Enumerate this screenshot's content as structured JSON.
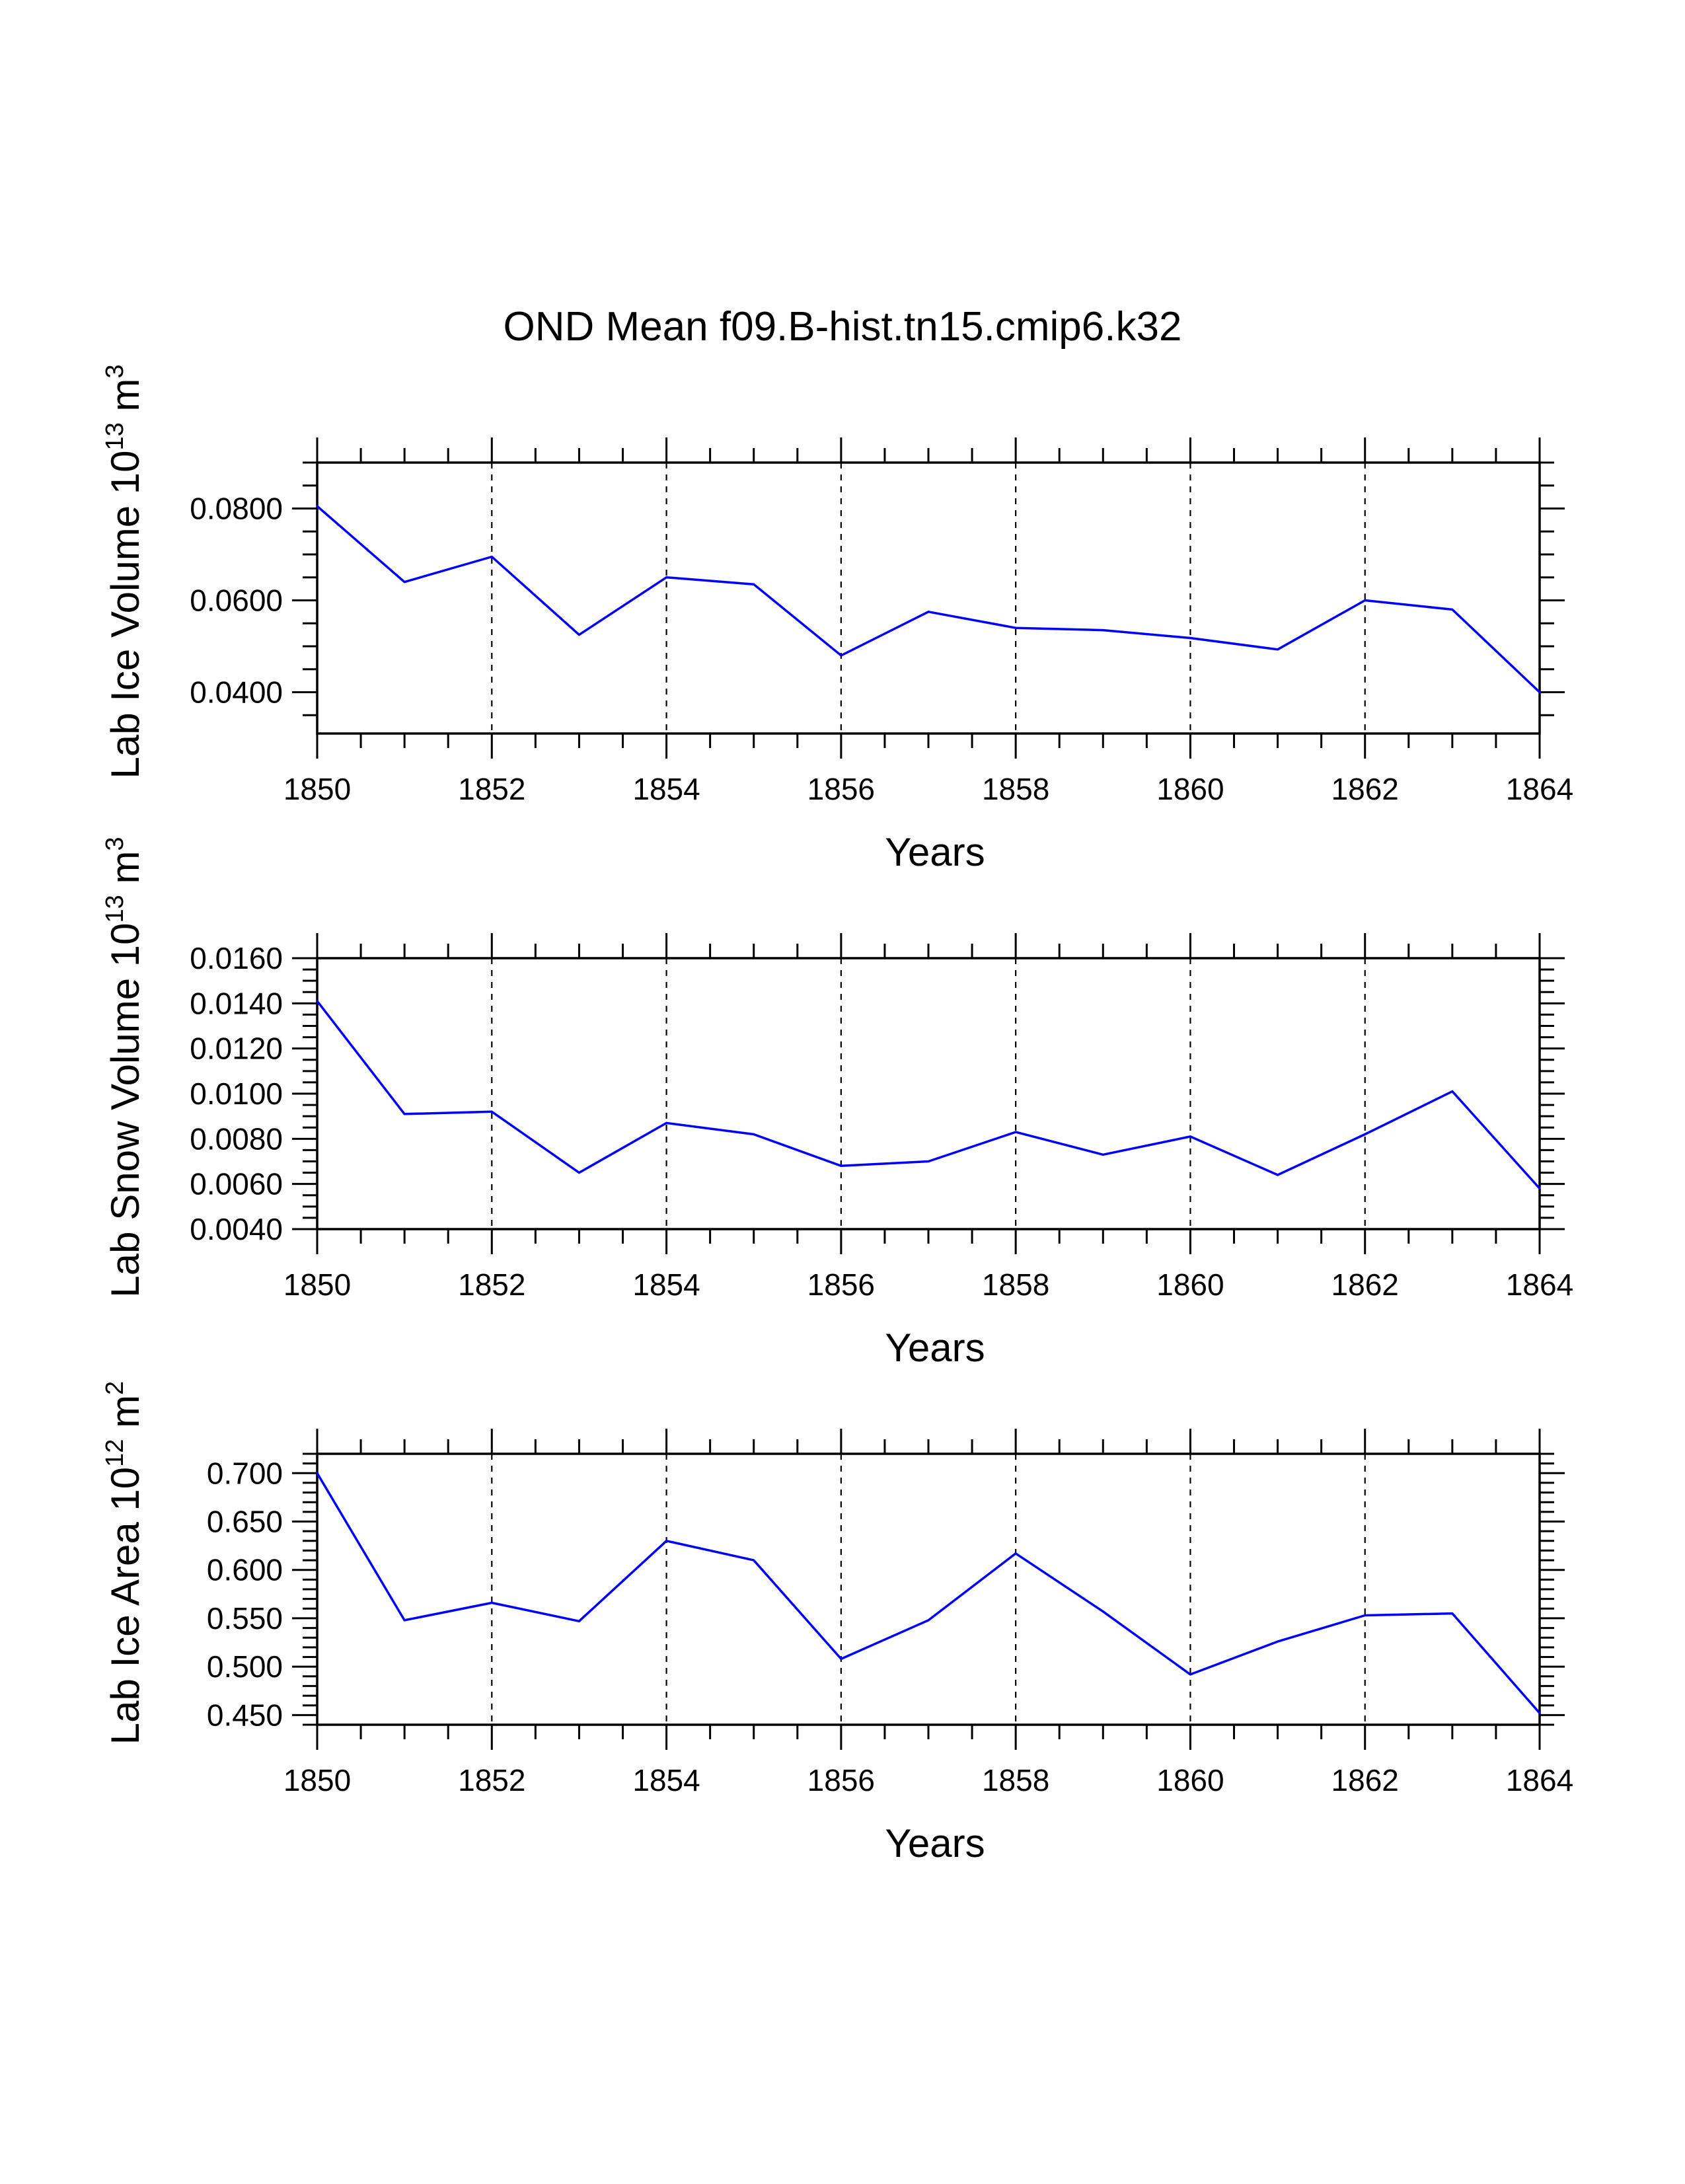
{
  "chart_data": {
    "title": "OND Mean f09.B-hist.tn15.cmip6.k32",
    "type": "line",
    "line_color": "#0000ff",
    "panels": [
      {
        "type": "line",
        "xlabel": "Years",
        "ylabel": {
          "text": "Lab Ice Volume 10",
          "exp": "13",
          "unit": " m",
          "unit_exp": "3"
        },
        "xlim": [
          1850,
          1864
        ],
        "ylim": [
          0.031,
          0.09
        ],
        "yticks": [
          0.04,
          0.06,
          0.08
        ],
        "ytick_labels": [
          "0.0400",
          "0.0600",
          "0.0800"
        ],
        "yminor_step": 0.005,
        "xticks": [
          1850,
          1852,
          1854,
          1856,
          1858,
          1860,
          1862,
          1864
        ],
        "xtick_labels": [
          "1850",
          "1852",
          "1854",
          "1856",
          "1858",
          "1860",
          "1862",
          "1864"
        ],
        "grid": "dashed vertical at major x ticks",
        "series": [
          {
            "name": "Lab Ice Volume",
            "x": [
              1850,
              1851,
              1852,
              1853,
              1854,
              1855,
              1856,
              1857,
              1858,
              1859,
              1860,
              1861,
              1862,
              1863,
              1864
            ],
            "values": [
              0.0805,
              0.064,
              0.0695,
              0.0525,
              0.065,
              0.0635,
              0.048,
              0.0575,
              0.054,
              0.0535,
              0.0518,
              0.0493,
              0.06,
              0.058,
              0.04
            ]
          }
        ]
      },
      {
        "type": "line",
        "xlabel": "Years",
        "ylabel": {
          "text": "Lab Snow Volume 10",
          "exp": "13",
          "unit": " m",
          "unit_exp": "3"
        },
        "xlim": [
          1850,
          1864
        ],
        "ylim": [
          0.004,
          0.016
        ],
        "yticks": [
          0.004,
          0.006,
          0.008,
          0.01,
          0.012,
          0.014,
          0.016
        ],
        "ytick_labels": [
          "0.0040",
          "0.0060",
          "0.0080",
          "0.0100",
          "0.0120",
          "0.0140",
          "0.0160"
        ],
        "yminor_step": 0.0005,
        "xticks": [
          1850,
          1852,
          1854,
          1856,
          1858,
          1860,
          1862,
          1864
        ],
        "xtick_labels": [
          "1850",
          "1852",
          "1854",
          "1856",
          "1858",
          "1860",
          "1862",
          "1864"
        ],
        "grid": "dashed vertical at major x ticks",
        "series": [
          {
            "name": "Lab Snow Volume",
            "x": [
              1850,
              1851,
              1852,
              1853,
              1854,
              1855,
              1856,
              1857,
              1858,
              1859,
              1860,
              1861,
              1862,
              1863,
              1864
            ],
            "values": [
              0.0141,
              0.0091,
              0.0092,
              0.0065,
              0.0087,
              0.0082,
              0.0068,
              0.007,
              0.0083,
              0.0073,
              0.0081,
              0.0064,
              0.0082,
              0.0101,
              0.0058
            ]
          }
        ]
      },
      {
        "type": "line",
        "xlabel": "Years",
        "ylabel": {
          "text": "Lab Ice Area 10",
          "exp": "12",
          "unit": " m",
          "unit_exp": "2"
        },
        "xlim": [
          1850,
          1864
        ],
        "ylim": [
          0.44,
          0.72
        ],
        "yticks": [
          0.45,
          0.5,
          0.55,
          0.6,
          0.65,
          0.7
        ],
        "ytick_labels": [
          "0.450",
          "0.500",
          "0.550",
          "0.600",
          "0.650",
          "0.700"
        ],
        "yminor_step": 0.01,
        "xticks": [
          1850,
          1852,
          1854,
          1856,
          1858,
          1860,
          1862,
          1864
        ],
        "xtick_labels": [
          "1850",
          "1852",
          "1854",
          "1856",
          "1858",
          "1860",
          "1862",
          "1864"
        ],
        "grid": "dashed vertical at major x ticks",
        "series": [
          {
            "name": "Lab Ice Area",
            "x": [
              1850,
              1851,
              1852,
              1853,
              1854,
              1855,
              1856,
              1857,
              1858,
              1859,
              1860,
              1861,
              1862,
              1863,
              1864
            ],
            "values": [
              0.7,
              0.548,
              0.566,
              0.547,
              0.63,
              0.61,
              0.508,
              0.548,
              0.617,
              0.557,
              0.492,
              0.526,
              0.553,
              0.555,
              0.452
            ]
          }
        ]
      }
    ]
  }
}
